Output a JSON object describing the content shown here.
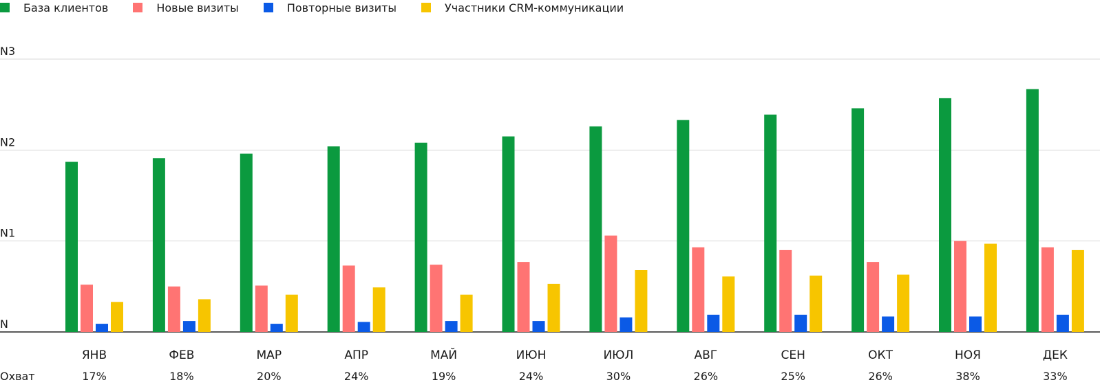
{
  "colors": {
    "base": "#0b9a3f",
    "new": "#ff7473",
    "repeat": "#0b5ae6",
    "crm": "#f7c500",
    "grid": "#d9d9d9",
    "axis": "#222222"
  },
  "chart_data": {
    "type": "bar",
    "y_ticks": [
      "N",
      "N1",
      "N2",
      "N3"
    ],
    "ylim": [
      0,
      3
    ],
    "grid": true,
    "legend_position": "top-left",
    "categories": [
      "ЯНВ",
      "ФЕВ",
      "МАР",
      "АПР",
      "МАЙ",
      "ИЮН",
      "ИЮЛ",
      "АВГ",
      "СЕН",
      "ОКТ",
      "НОЯ",
      "ДЕК"
    ],
    "series": [
      {
        "name": "База клиентов",
        "color": "#0b9a3f",
        "values": [
          1.87,
          1.91,
          1.96,
          2.04,
          2.08,
          2.15,
          2.26,
          2.33,
          2.39,
          2.46,
          2.57,
          2.67
        ]
      },
      {
        "name": "Новые визиты",
        "color": "#ff7473",
        "values": [
          0.52,
          0.5,
          0.51,
          0.73,
          0.74,
          0.77,
          1.06,
          0.93,
          0.9,
          0.77,
          1.0,
          0.93
        ]
      },
      {
        "name": "Повторные визиты",
        "color": "#0b5ae6",
        "values": [
          0.09,
          0.12,
          0.09,
          0.11,
          0.12,
          0.12,
          0.16,
          0.19,
          0.19,
          0.17,
          0.17,
          0.19
        ]
      },
      {
        "name": "Участники CRM-коммуникации",
        "color": "#f7c500",
        "values": [
          0.33,
          0.36,
          0.41,
          0.49,
          0.41,
          0.53,
          0.68,
          0.61,
          0.62,
          0.63,
          0.97,
          0.9
        ]
      }
    ],
    "coverage_label": "Охват",
    "coverage": [
      "17%",
      "18%",
      "20%",
      "24%",
      "19%",
      "24%",
      "30%",
      "26%",
      "25%",
      "26%",
      "38%",
      "33%"
    ]
  }
}
